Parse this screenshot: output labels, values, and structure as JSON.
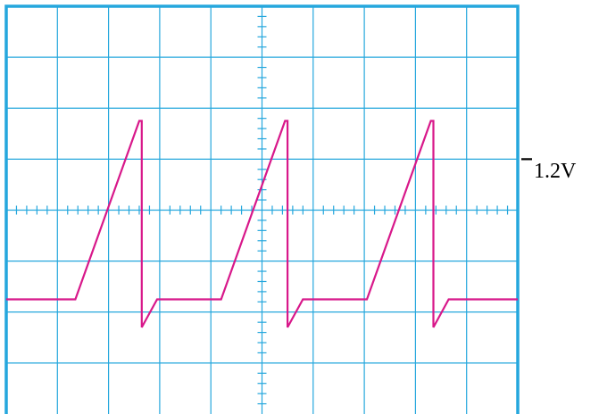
{
  "scope": {
    "divisions": {
      "horizontal": 10,
      "vertical": 8
    },
    "minor_ticks_per_division": 5,
    "colors": {
      "grid": "#25a7dd",
      "trace": "#d8188a",
      "marker": "#000000"
    }
  },
  "reference_marker": {
    "label": "1.2V",
    "level_div": 1.0
  },
  "trace": {
    "points_div": [
      [
        0.0,
        -1.75
      ],
      [
        1.35,
        -1.75
      ],
      [
        2.6,
        1.75
      ],
      [
        2.65,
        1.75
      ],
      [
        2.65,
        -2.3
      ],
      [
        2.95,
        -1.75
      ],
      [
        4.2,
        -1.75
      ],
      [
        5.45,
        1.75
      ],
      [
        5.5,
        1.75
      ],
      [
        5.5,
        -2.3
      ],
      [
        5.8,
        -1.75
      ],
      [
        7.05,
        -1.75
      ],
      [
        8.3,
        1.75
      ],
      [
        8.35,
        1.75
      ],
      [
        8.35,
        -2.3
      ],
      [
        8.65,
        -1.75
      ],
      [
        10.0,
        -1.75
      ]
    ]
  }
}
